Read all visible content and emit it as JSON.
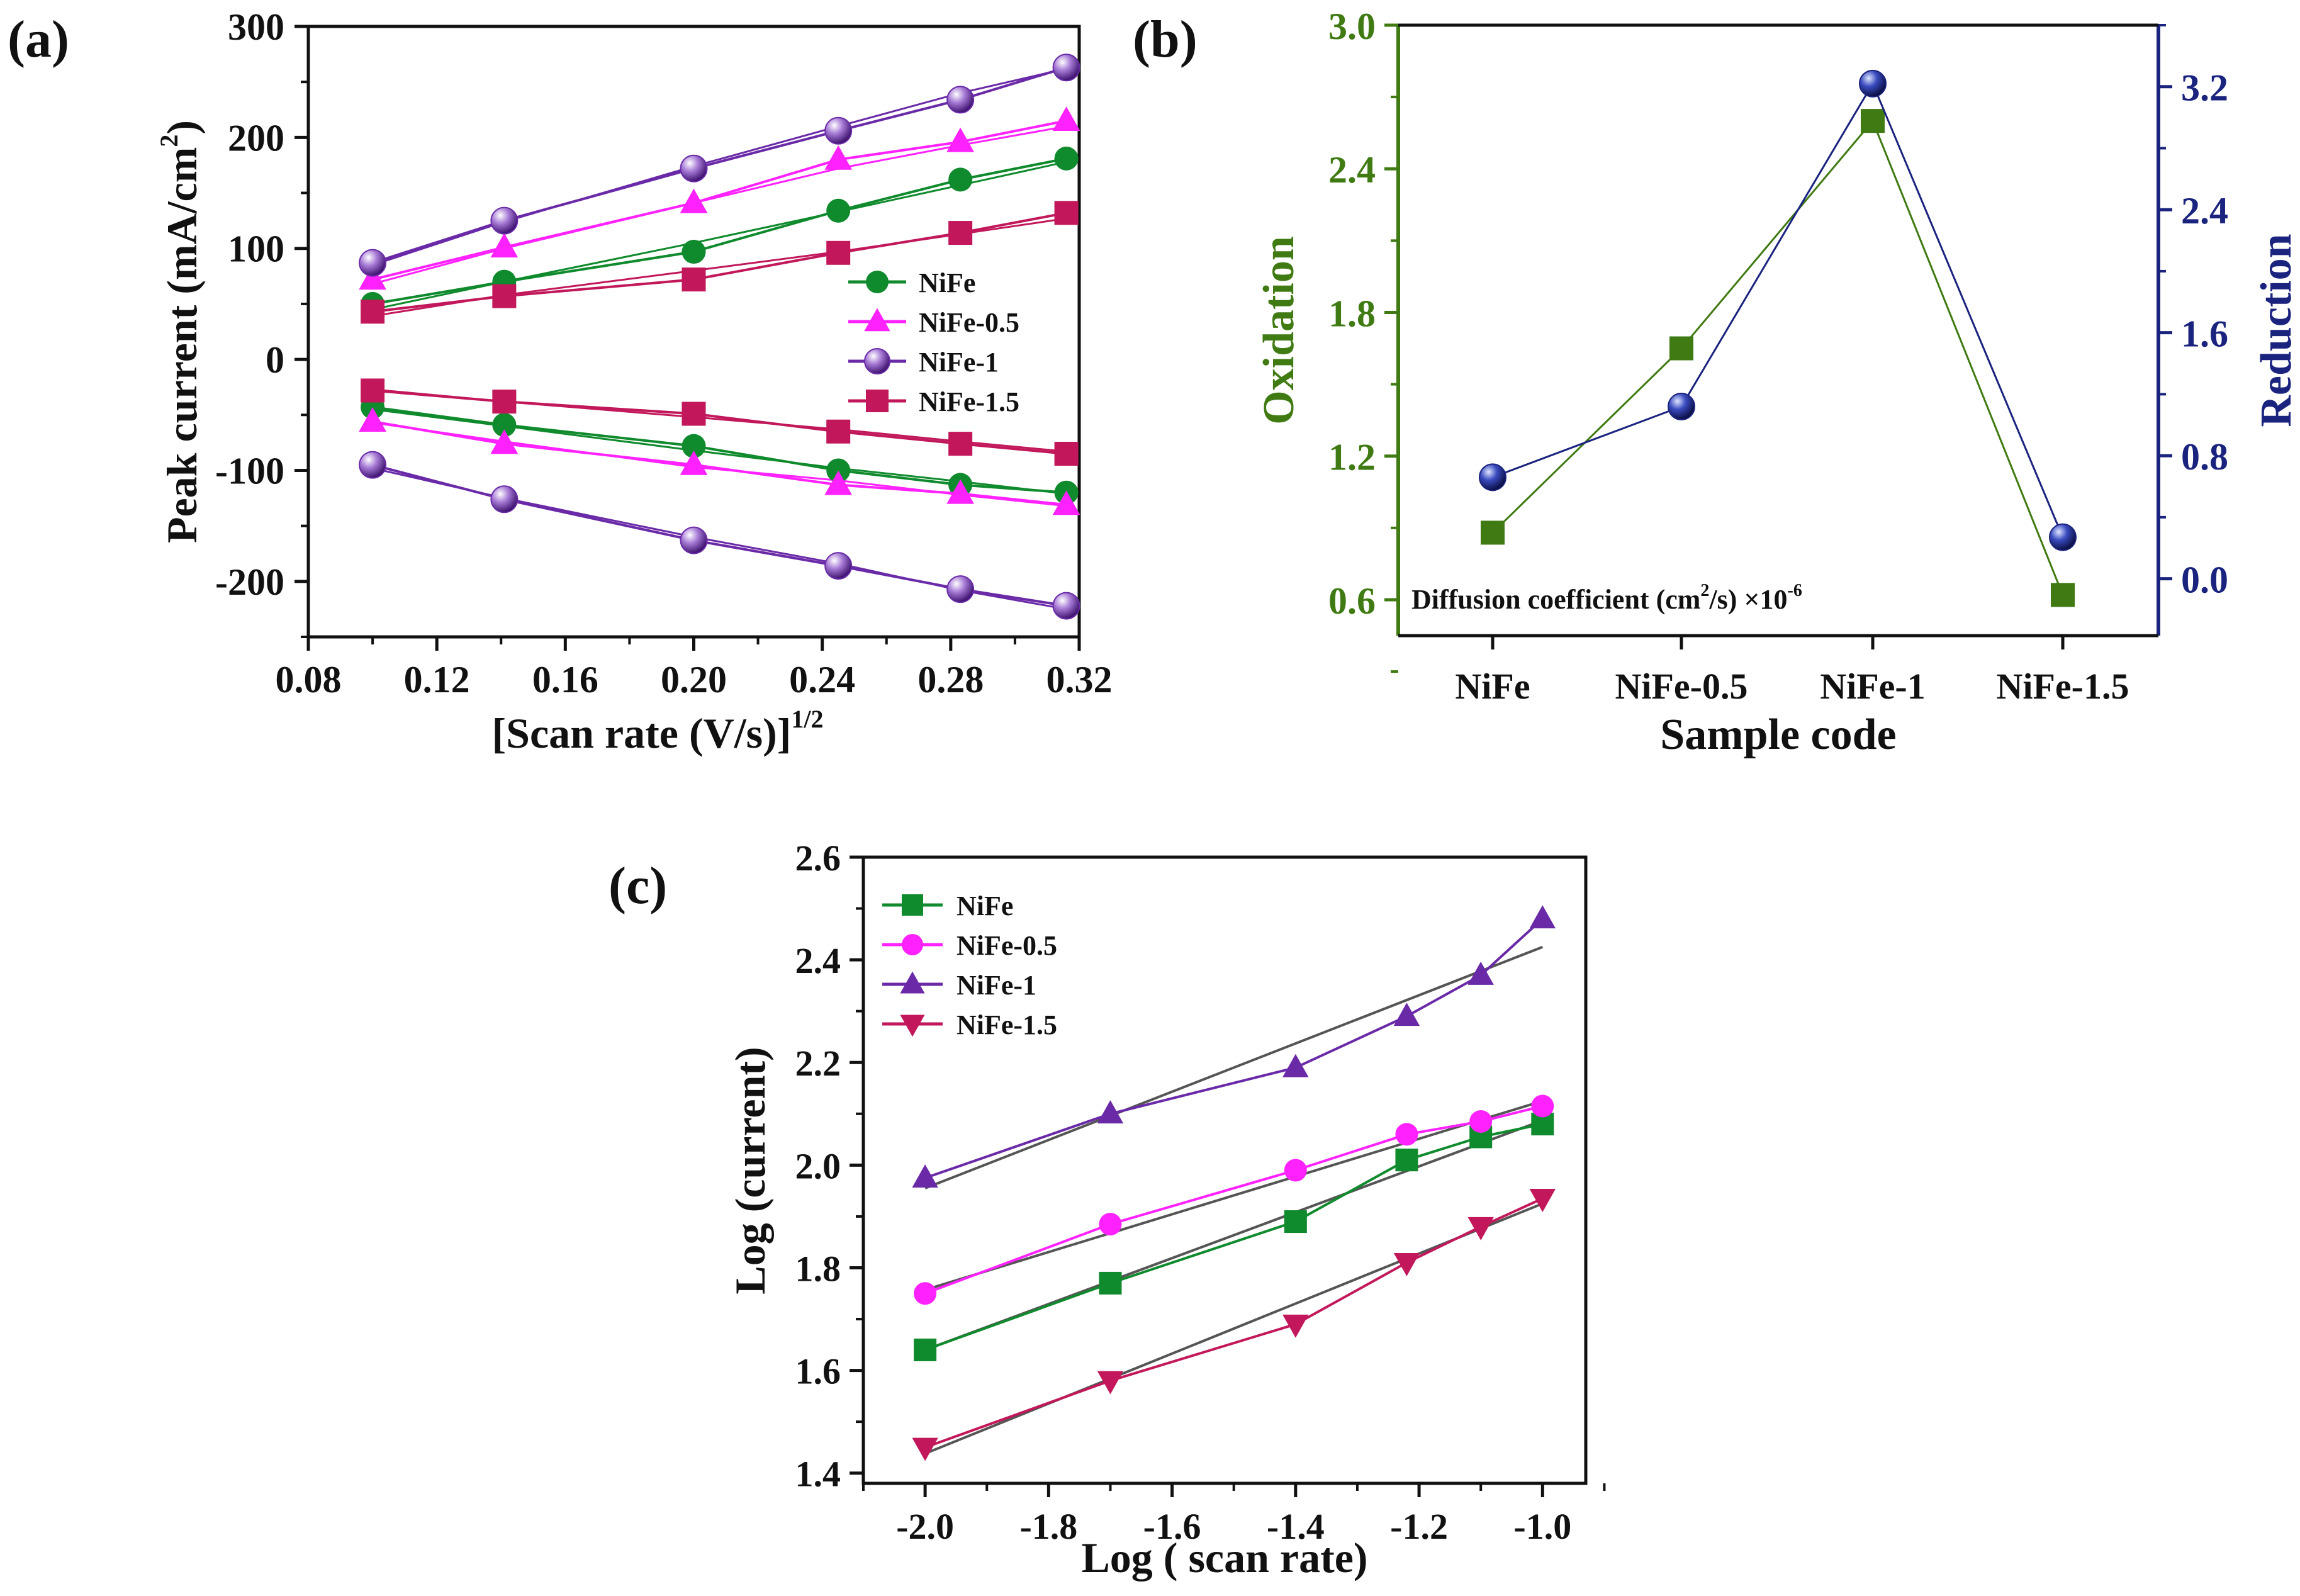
{
  "colors": {
    "nife": "#0f8a2c",
    "nife05": "#ff22ff",
    "nife1": "#6a2aa8",
    "nife15": "#c2185b",
    "fit": "#555555",
    "oxidation": "#3f7a12",
    "reduction": "#1a237e",
    "axis": "#111111"
  },
  "chart_data": [
    {
      "id": "a",
      "panel_label": "(a)",
      "type": "line",
      "xlabel": "[Scan rate (V/s)]",
      "xlabel_sup": "1/2",
      "ylabel": "Peak current (mA/cm",
      "ylabel_sup": "2",
      "ylabel_end": ")",
      "xlim": [
        0.08,
        0.32
      ],
      "ylim": [
        -250,
        300
      ],
      "xticks": [
        0.08,
        0.12,
        0.16,
        0.2,
        0.24,
        0.28,
        0.32
      ],
      "xtick_labels": [
        "0.08",
        "0.12",
        "0.16",
        "0.20",
        "0.24",
        "0.28",
        "0.32"
      ],
      "yticks": [
        -200,
        -100,
        0,
        100,
        200,
        300
      ],
      "ytick_labels": [
        "-200",
        "-100",
        "0",
        "100",
        "200",
        "300"
      ],
      "legend_position": "right-middle",
      "x": [
        0.1,
        0.141,
        0.2,
        0.245,
        0.283,
        0.316
      ],
      "series": [
        {
          "name": "NiFe",
          "marker": "circle",
          "color_key": "nife",
          "values": [
            50,
            70,
            97,
            134,
            162,
            181
          ],
          "fit": [
            45,
            70,
            105,
            133,
            157,
            178
          ]
        },
        {
          "name": "NiFe-0.5",
          "marker": "triangle-up",
          "color_key": "nife05",
          "values": [
            72,
            101,
            141,
            180,
            196,
            215
          ],
          "fit": [
            68,
            100,
            141,
            172,
            193,
            210
          ]
        },
        {
          "name": "NiFe-1",
          "marker": "sphere",
          "color_key": "nife1",
          "values": [
            87,
            125,
            172,
            206,
            234,
            263
          ],
          "fit": [
            85,
            124,
            174,
            210,
            240,
            262
          ]
        },
        {
          "name": "NiFe-1.5",
          "marker": "square",
          "color_key": "nife15",
          "values": [
            43,
            57,
            72,
            96,
            114,
            132
          ],
          "fit": [
            39,
            58,
            80,
            97,
            113,
            127
          ]
        },
        {
          "name": "NiFe",
          "legend": false,
          "marker": "circle",
          "color_key": "nife",
          "values": [
            -43,
            -59,
            -78,
            -100,
            -113,
            -120
          ],
          "fit": [
            -45,
            -60,
            -82,
            -98,
            -110,
            -121
          ]
        },
        {
          "name": "NiFe-0.5",
          "legend": false,
          "marker": "triangle-up",
          "color_key": "nife05",
          "values": [
            -56,
            -76,
            -95,
            -113,
            -121,
            -131
          ],
          "fit": [
            -57,
            -74,
            -97,
            -109,
            -122,
            -132
          ]
        },
        {
          "name": "NiFe-1",
          "legend": false,
          "marker": "sphere",
          "color_key": "nife1",
          "values": [
            -95,
            -126,
            -163,
            -186,
            -207,
            -222
          ],
          "fit": [
            -98,
            -125,
            -160,
            -184,
            -208,
            -225
          ]
        },
        {
          "name": "NiFe-1.5",
          "legend": false,
          "marker": "square",
          "color_key": "nife15",
          "values": [
            -28,
            -38,
            -49,
            -65,
            -76,
            -85
          ],
          "fit": [
            -27,
            -38,
            -52,
            -63,
            -74,
            -83
          ]
        }
      ]
    },
    {
      "id": "b",
      "panel_label": "(b)",
      "type": "line",
      "title_annotation": "Diffusion coefficient (cm",
      "title_annotation_sup": "2",
      "title_annotation_mid": "/s) ×10",
      "title_annotation_exp": "-6",
      "xlabel": "Sample code",
      "categories": [
        "NiFe",
        "NiFe-0.5",
        "NiFe-1",
        "NiFe-1.5"
      ],
      "ylabel_left": "Oxidation",
      "ylabel_right": "Reduction",
      "ylim_left": [
        0.45,
        3.0
      ],
      "yticks_left": [
        0.6,
        1.2,
        1.8,
        2.4,
        3.0
      ],
      "ytick_labels_left": [
        "0.6",
        "1.2",
        "1.8",
        "2.4",
        "3.0"
      ],
      "ylim_right": [
        -0.37,
        3.6
      ],
      "yticks_right": [
        0.0,
        0.8,
        1.6,
        2.4,
        3.2
      ],
      "ytick_labels_right": [
        "0.0",
        "0.8",
        "1.6",
        "2.4",
        "3.2"
      ],
      "series": [
        {
          "name": "Oxidation",
          "axis": "left",
          "marker": "square",
          "color_key": "oxidation",
          "values": [
            0.88,
            1.65,
            2.6,
            0.62
          ]
        },
        {
          "name": "Reduction",
          "axis": "right",
          "marker": "sphere",
          "color_key": "reduction",
          "values": [
            0.66,
            1.12,
            3.22,
            0.27
          ]
        }
      ]
    },
    {
      "id": "c",
      "panel_label": "(c)",
      "type": "line",
      "xlabel": "Log ( scan rate)",
      "ylabel": "Log (current)",
      "xlim": [
        -2.1,
        -0.93
      ],
      "ylim": [
        1.38,
        2.6
      ],
      "xticks": [
        -2.0,
        -1.8,
        -1.6,
        -1.4,
        -1.2,
        -1.0
      ],
      "xtick_labels": [
        "-2.0",
        "-1.8",
        "-1.6",
        "-1.4",
        "-1.2",
        "-1.0"
      ],
      "yticks": [
        1.4,
        1.6,
        1.8,
        2.0,
        2.2,
        2.4,
        2.6
      ],
      "ytick_labels": [
        "1.4",
        "1.6",
        "1.8",
        "2.0",
        "2.2",
        "2.4",
        "2.6"
      ],
      "legend_position": "top-left",
      "x": [
        -2.0,
        -1.7,
        -1.4,
        -1.22,
        -1.1,
        -1.0
      ],
      "series": [
        {
          "name": "NiFe",
          "marker": "square",
          "color_key": "nife",
          "values": [
            1.64,
            1.77,
            1.89,
            2.01,
            2.055,
            2.08
          ],
          "fit": [
            1.64,
            2.087
          ]
        },
        {
          "name": "NiFe-0.5",
          "marker": "circle",
          "color_key": "nife05",
          "values": [
            1.75,
            1.885,
            1.99,
            2.06,
            2.085,
            2.115
          ],
          "fit": [
            1.757,
            2.125
          ]
        },
        {
          "name": "NiFe-1",
          "marker": "triangle-up",
          "color_key": "nife1",
          "values": [
            1.975,
            2.1,
            2.19,
            2.29,
            2.37,
            2.48
          ],
          "fit": [
            1.955,
            2.425
          ]
        },
        {
          "name": "NiFe-1.5",
          "marker": "triangle-down",
          "color_key": "nife15",
          "values": [
            1.45,
            1.58,
            1.69,
            1.81,
            1.88,
            1.935
          ],
          "fit": [
            1.438,
            1.925
          ]
        }
      ]
    }
  ]
}
